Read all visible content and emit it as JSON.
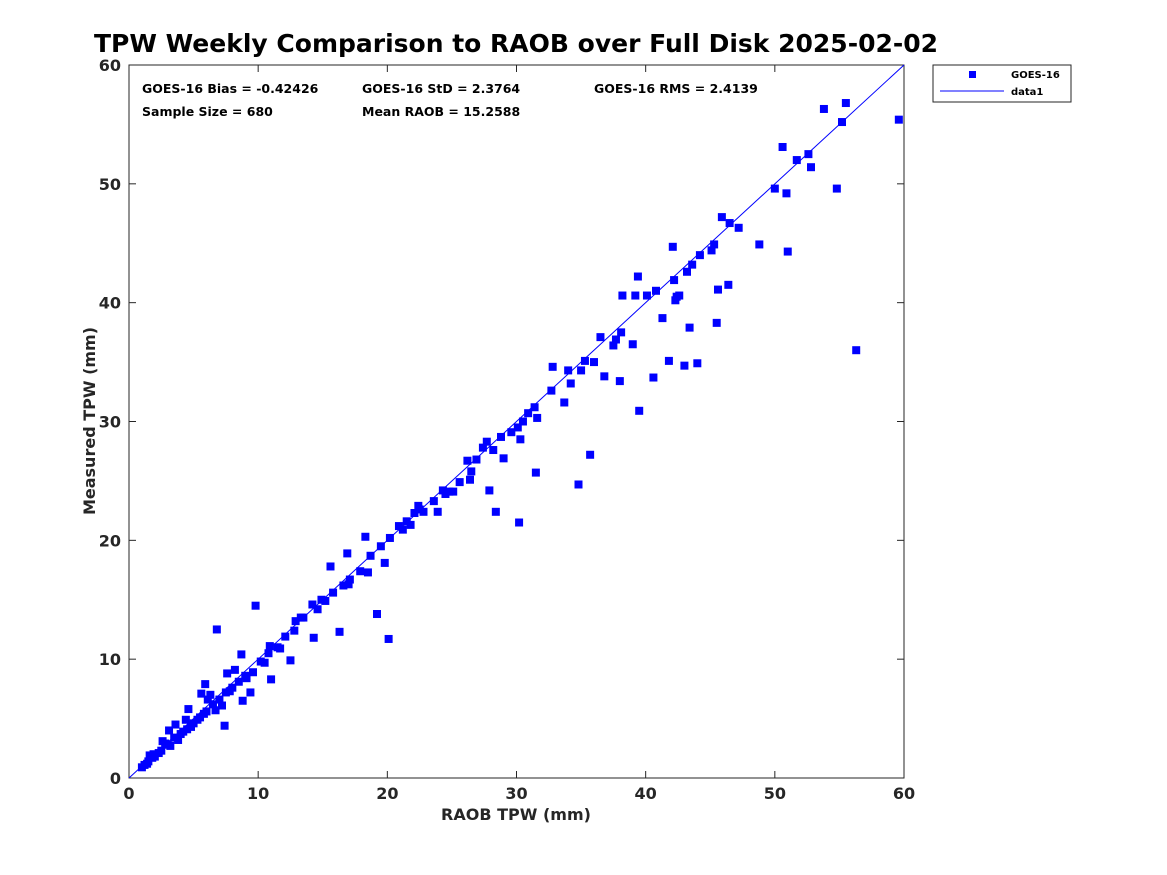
{
  "chart_data": {
    "type": "scatter",
    "title": "TPW Weekly Comparison to RAOB over Full Disk 2025-02-02",
    "xlabel": "RAOB TPW (mm)",
    "ylabel": "Measured TPW (mm)",
    "xlim": [
      0,
      60
    ],
    "ylim": [
      0,
      60
    ],
    "xticks": [
      0,
      10,
      20,
      30,
      40,
      50,
      60
    ],
    "yticks": [
      0,
      10,
      20,
      30,
      40,
      50,
      60
    ],
    "grid": false,
    "legend_position": "outside-top-right",
    "stats": [
      {
        "text": "GOES-16 Bias = -0.42426"
      },
      {
        "text": "GOES-16 StD = 2.3764"
      },
      {
        "text": "GOES-16 RMS = 2.4139"
      },
      {
        "text": "Sample Size = 680"
      },
      {
        "text": "Mean RAOB = 15.2588"
      }
    ],
    "series": [
      {
        "name": "GOES-16",
        "kind": "scatter",
        "marker": "square",
        "color": "#0000ff",
        "x": [
          59.6,
          55.2,
          53.8,
          55.5,
          54.8,
          52.6,
          52.8,
          51.7,
          50.6,
          50.0,
          51.0,
          48.8,
          47.2,
          46.5,
          45.9,
          45.3,
          50.9,
          46.4,
          45.5,
          56.3,
          45.6,
          43.4,
          44.2,
          45.1,
          43.2,
          43.6,
          42.1,
          42.2,
          42.6,
          42.3,
          40.8,
          39.2,
          39.4,
          38.2,
          38.1,
          36.0,
          35.0,
          34.2,
          33.7,
          32.7,
          31.4,
          30.9,
          30.5,
          30.3,
          29.6,
          28.8,
          28.2,
          27.4,
          26.9,
          26.2,
          25.6,
          24.8,
          24.3,
          23.6,
          22.8,
          22.1,
          21.5,
          20.9,
          20.2,
          19.5,
          18.7,
          17.9,
          17.1,
          16.6,
          15.8,
          14.9,
          14.2,
          13.5,
          12.8,
          12.1,
          11.5,
          10.8,
          10.2,
          9.6,
          9.0,
          8.5,
          8.0,
          7.5,
          7.0,
          6.5,
          6.0,
          5.5,
          5.0,
          4.5,
          4.0,
          3.5,
          3.0,
          2.5,
          2.0,
          1.5,
          1.2,
          1.0,
          34.8,
          35.7,
          36.8,
          39.5,
          38.0,
          37.5,
          40.6,
          41.8,
          43.0,
          44.0,
          31.5,
          30.2,
          28.4,
          27.9,
          26.5,
          24.5,
          22.4,
          21.8,
          20.1,
          19.2,
          18.5,
          17.0,
          16.3,
          15.2,
          14.6,
          13.3,
          12.5,
          11.0,
          10.5,
          9.4,
          8.8,
          7.8,
          7.2,
          6.3,
          5.8,
          5.3,
          4.8,
          4.2,
          3.8,
          3.2,
          2.8,
          2.3,
          1.8,
          1.4,
          4.6,
          5.9,
          6.7,
          8.2,
          9.1,
          7.4,
          6.1,
          5.6,
          4.4,
          3.6,
          3.1,
          2.6,
          1.9,
          1.6,
          6.8,
          7.6,
          8.7,
          9.8,
          10.9,
          11.7,
          12.9,
          14.3,
          15.6,
          16.9,
          18.3,
          19.8,
          21.2,
          22.5,
          23.9,
          25.1,
          26.4,
          27.7,
          29.0,
          30.1,
          31.6,
          32.8,
          34.0,
          35.3,
          36.5,
          37.7,
          39.0,
          40.1,
          41.3,
          42.4
        ],
        "y": [
          55.4,
          55.2,
          56.3,
          56.8,
          49.6,
          52.5,
          51.4,
          52.0,
          53.1,
          49.6,
          44.3,
          44.9,
          46.3,
          46.7,
          47.2,
          44.9,
          49.2,
          41.5,
          38.3,
          36.0,
          41.1,
          37.9,
          44.0,
          44.4,
          42.6,
          43.2,
          44.7,
          41.9,
          40.6,
          40.2,
          41.0,
          40.6,
          42.2,
          40.6,
          37.5,
          35.0,
          34.3,
          33.2,
          31.6,
          32.6,
          31.2,
          30.7,
          30.0,
          28.5,
          29.1,
          28.7,
          27.6,
          27.8,
          26.8,
          26.7,
          24.9,
          24.1,
          24.2,
          23.3,
          22.4,
          22.3,
          21.6,
          21.2,
          20.2,
          19.5,
          18.7,
          17.4,
          16.7,
          16.2,
          15.6,
          15.0,
          14.6,
          13.5,
          12.4,
          11.9,
          11.0,
          10.5,
          9.8,
          8.9,
          8.6,
          8.1,
          7.6,
          7.2,
          6.6,
          6.2,
          5.6,
          5.1,
          4.6,
          4.1,
          3.7,
          3.4,
          2.8,
          2.3,
          1.8,
          1.4,
          1.1,
          0.9,
          24.7,
          27.2,
          33.8,
          30.9,
          33.4,
          36.4,
          33.7,
          35.1,
          34.7,
          34.9,
          25.7,
          21.5,
          22.4,
          24.2,
          25.8,
          23.9,
          22.9,
          21.3,
          11.7,
          13.8,
          17.3,
          16.3,
          12.3,
          14.9,
          14.2,
          13.5,
          9.9,
          8.3,
          9.7,
          7.2,
          6.5,
          7.3,
          6.1,
          7.0,
          5.4,
          4.9,
          4.3,
          3.9,
          3.2,
          2.7,
          2.9,
          2.1,
          1.7,
          1.2,
          5.8,
          7.9,
          5.7,
          9.1,
          8.4,
          4.4,
          6.6,
          7.1,
          4.9,
          4.5,
          4.0,
          3.1,
          2.0,
          1.9,
          12.5,
          8.8,
          10.4,
          14.5,
          11.1,
          10.9,
          13.2,
          11.8,
          17.8,
          18.9,
          20.3,
          18.1,
          20.9,
          22.6,
          22.4,
          24.1,
          25.1,
          28.3,
          26.9,
          29.5,
          30.3,
          34.6,
          34.3,
          35.1,
          37.1,
          36.9,
          36.5,
          40.6,
          38.7,
          40.5
        ]
      },
      {
        "name": "data1",
        "kind": "line",
        "color": "#0000ff",
        "x": [
          0,
          60
        ],
        "y": [
          0,
          60
        ]
      }
    ]
  }
}
